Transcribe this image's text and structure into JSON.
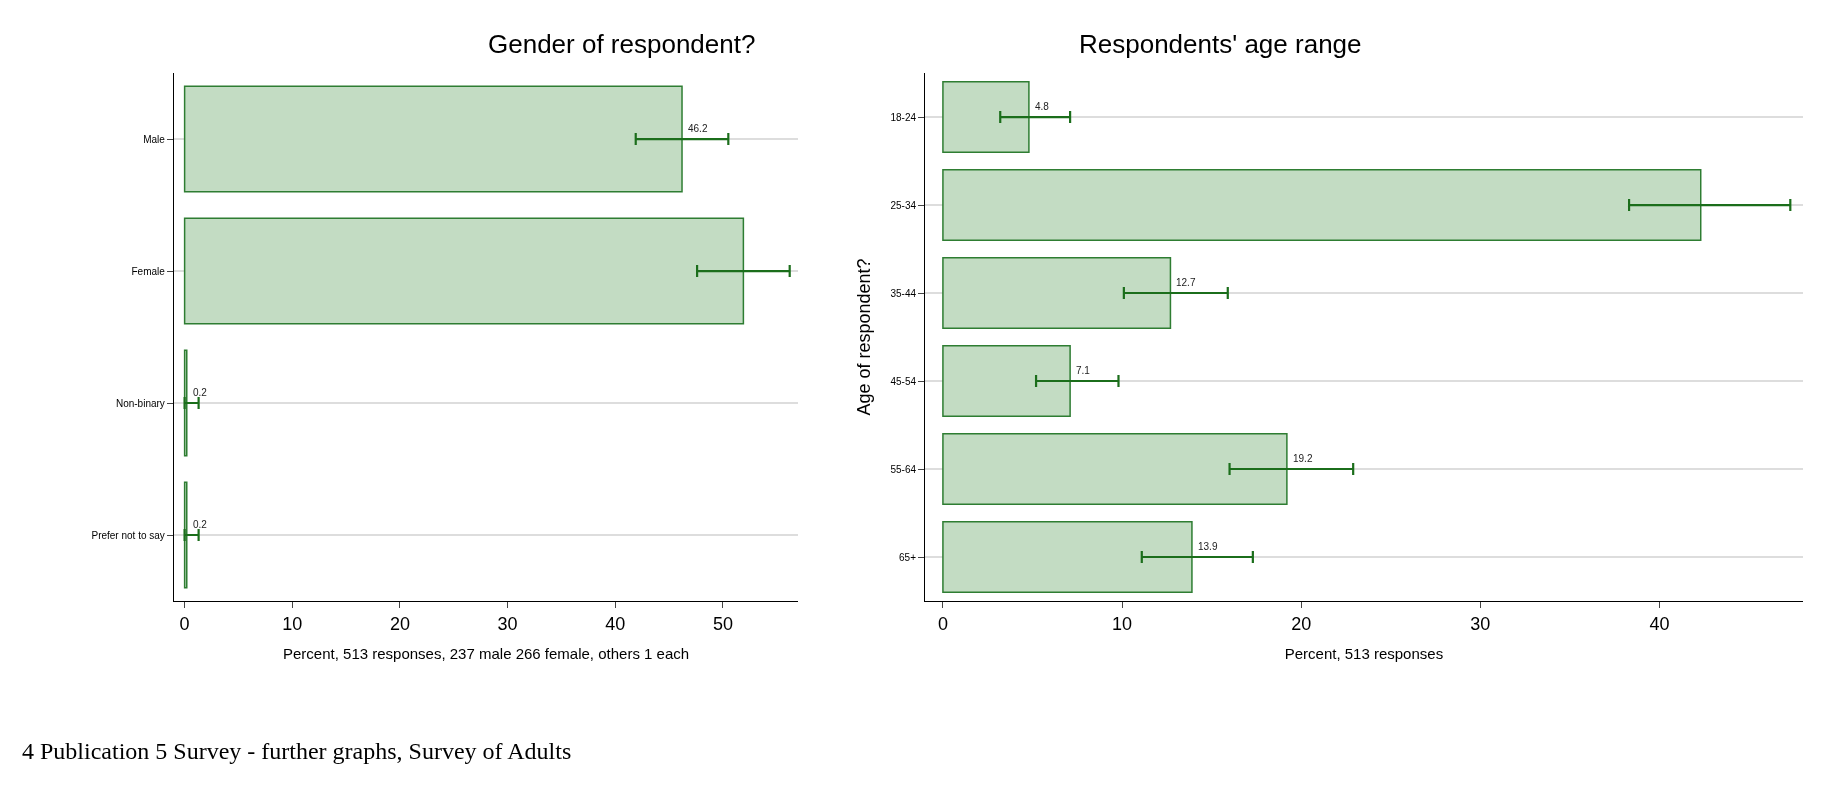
{
  "chart_data": [
    {
      "type": "bar",
      "orientation": "horizontal",
      "title": "Gender of respondent?",
      "xlabel": "Percent, 513 responses, 237 male 266 female, others 1 each",
      "categories": [
        "Male",
        "Female",
        "Non-binary",
        "Prefer not to say"
      ],
      "values": [
        46.2,
        51.9,
        0.2,
        0.2
      ],
      "errors": [
        [
          41.9,
          50.5
        ],
        [
          47.6,
          56.2
        ],
        [
          0,
          1.3
        ],
        [
          0,
          1.3
        ]
      ],
      "value_labels": [
        "46.2",
        null,
        "0.2",
        "0.2"
      ],
      "color": "#c3dcc3",
      "xlim": [
        -1,
        57
      ],
      "xticks": [
        0,
        10,
        20,
        30,
        40,
        50
      ],
      "grid": "y",
      "annotations": [
        "4 Publication 5 Survey - further graphs, Survey of Adults"
      ]
    },
    {
      "type": "bar",
      "orientation": "horizontal",
      "title": "Respondents' age range",
      "xlabel": "Percent, 513 responses",
      "ylabel": "Age of respondent?",
      "categories": [
        "18-24",
        "25-34",
        "35-44",
        "45-54",
        "55-64",
        "65+"
      ],
      "values": [
        4.8,
        42.3,
        12.7,
        7.1,
        19.2,
        13.9
      ],
      "errors": [
        [
          3.2,
          7.1
        ],
        [
          38.3,
          47.3
        ],
        [
          10.1,
          15.9
        ],
        [
          5.2,
          9.8
        ],
        [
          16.0,
          22.9
        ],
        [
          11.1,
          17.3
        ]
      ],
      "value_labels": [
        "4.8",
        null,
        "12.7",
        "7.1",
        "19.2",
        "13.9"
      ],
      "color": "#c3dcc3",
      "xlim": [
        -1,
        48
      ],
      "xticks": [
        0,
        10,
        20,
        30,
        40
      ],
      "grid": "y"
    }
  ]
}
